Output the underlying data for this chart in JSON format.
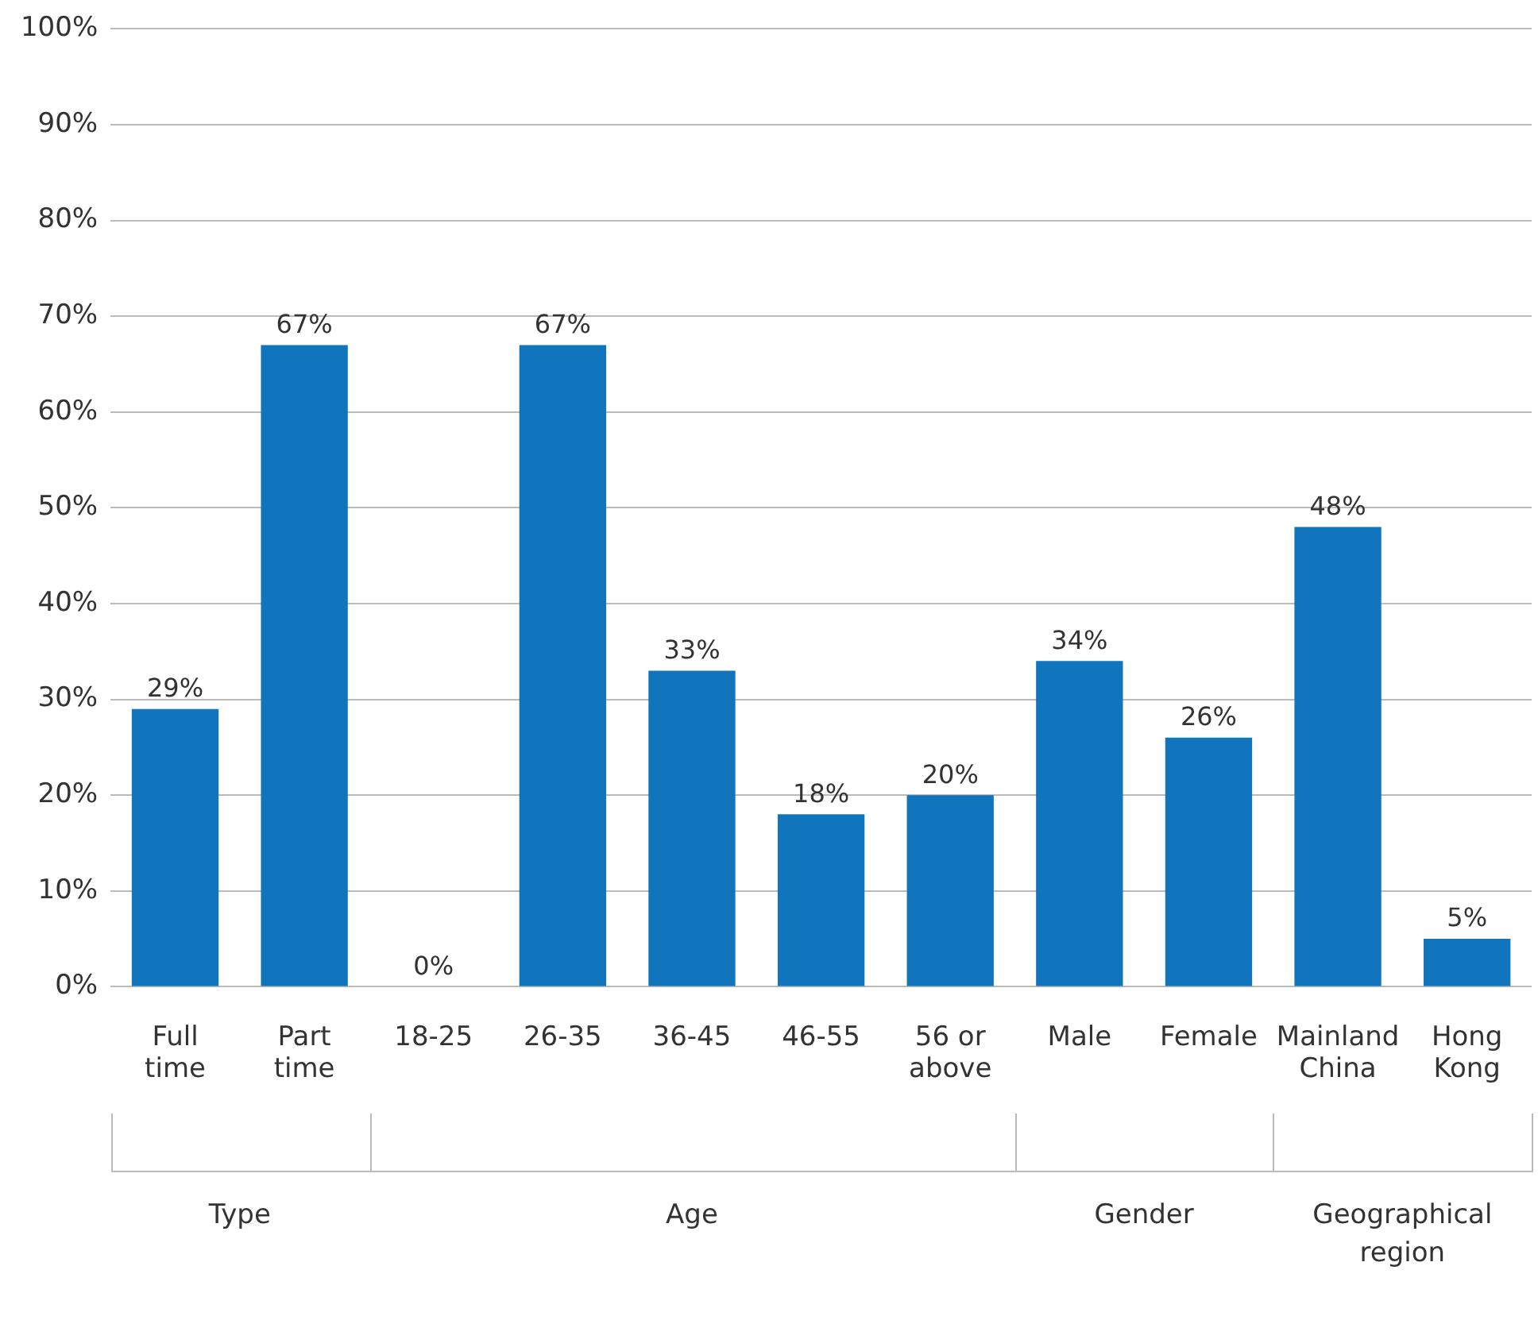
{
  "chart_data": {
    "type": "bar",
    "categories": [
      "Full time",
      "Part time",
      "18-25",
      "26-35",
      "36-45",
      "46-55",
      "56 or above",
      "Male",
      "Female",
      "Mainland China",
      "Hong Kong"
    ],
    "values": [
      29,
      67,
      0,
      67,
      33,
      18,
      20,
      34,
      26,
      48,
      5
    ],
    "value_labels": [
      "29%",
      "67%",
      "0%",
      "67%",
      "33%",
      "18%",
      "20%",
      "34%",
      "26%",
      "48%",
      "5%"
    ],
    "color": "#1175bd",
    "ylim": [
      0,
      100
    ],
    "yticks": [
      {
        "value": 0,
        "label": "0%"
      },
      {
        "value": 10,
        "label": "10%"
      },
      {
        "value": 20,
        "label": "20%"
      },
      {
        "value": 30,
        "label": "30%"
      },
      {
        "value": 40,
        "label": "40%"
      },
      {
        "value": 50,
        "label": "50%"
      },
      {
        "value": 60,
        "label": "60%"
      },
      {
        "value": 70,
        "label": "70%"
      },
      {
        "value": 80,
        "label": "80%"
      },
      {
        "value": 90,
        "label": "90%"
      },
      {
        "value": 100,
        "label": "100%"
      }
    ],
    "grid": "y",
    "annotations": [
      "Type",
      "Age",
      "Gender",
      "Geographical region"
    ]
  }
}
